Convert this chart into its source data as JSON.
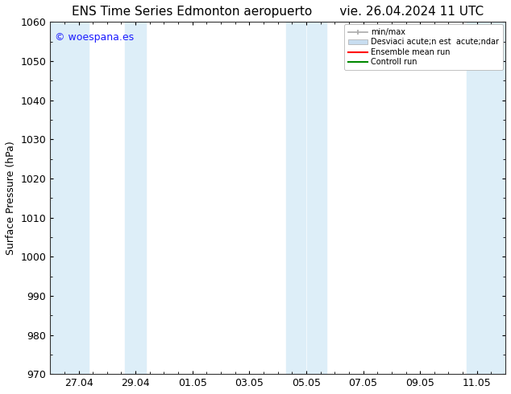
{
  "title": "ENS Time Series Edmonton aeropuerto       vie. 26.04.2024 11 UTC",
  "ylabel": "Surface Pressure (hPa)",
  "ylim": [
    970,
    1060
  ],
  "yticks": [
    970,
    980,
    990,
    1000,
    1010,
    1020,
    1030,
    1040,
    1050,
    1060
  ],
  "xlabel_ticks": [
    "27.04",
    "29.04",
    "01.05",
    "03.05",
    "05.05",
    "07.05",
    "09.05",
    "11.05"
  ],
  "watermark": "© woespana.es",
  "watermark_color": "#1a1aff",
  "background_color": "#ffffff",
  "plot_bg_color": "#ffffff",
  "band_color": "#ddeef8",
  "title_fontsize": 11,
  "axis_fontsize": 9,
  "tick_fontsize": 9,
  "legend_label_minmax": "min/max",
  "legend_label_std": "Desviaci acute;n est  acute;ndar",
  "legend_label_ens": "Ensemble mean run",
  "legend_label_ctrl": "Controll run",
  "legend_color_minmax": "#aaaaaa",
  "legend_color_std": "#c8ddf0",
  "legend_color_ens": "#ff0000",
  "legend_color_ctrl": "#008800"
}
